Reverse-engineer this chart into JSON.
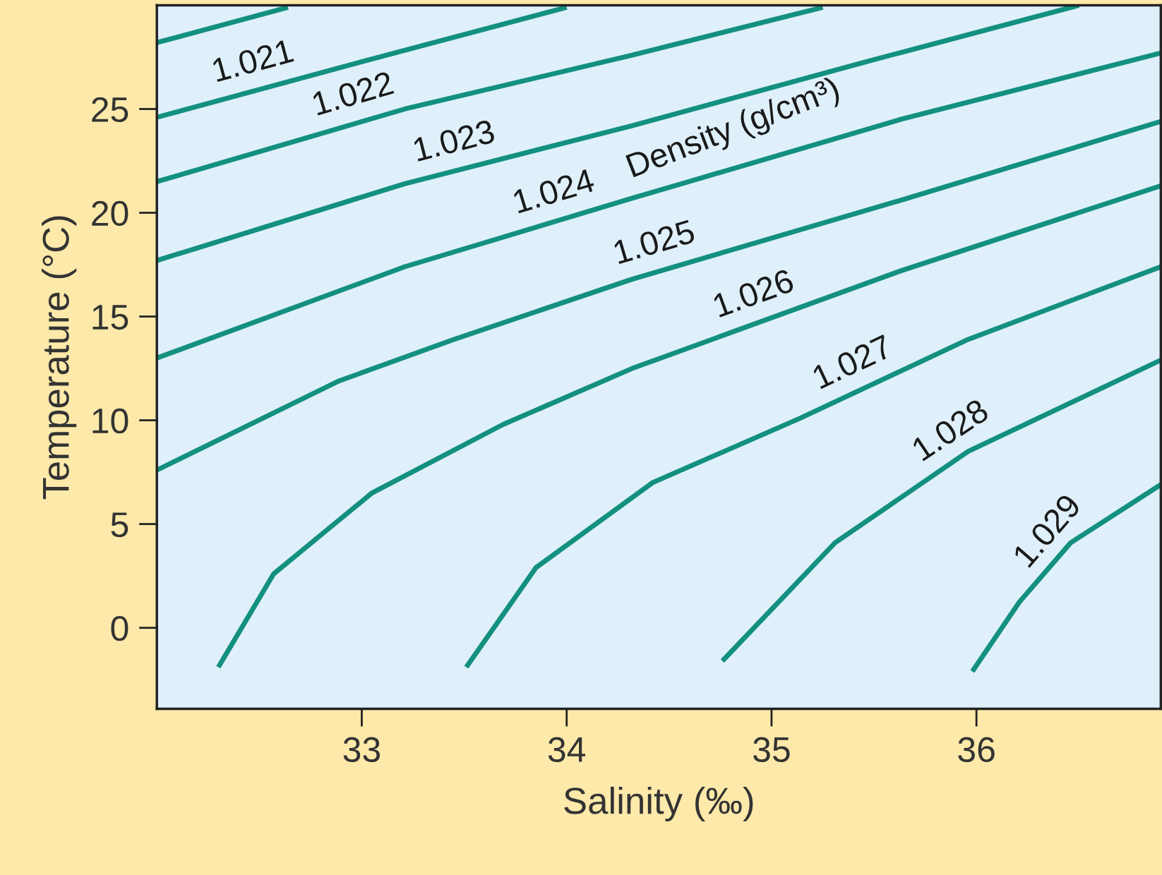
{
  "chart_data": {
    "type": "line",
    "xlabel": "Salinity (‰)",
    "ylabel": "Temperature (°C)",
    "annotations": [
      "Density (g/cm³)"
    ],
    "xlim": [
      32,
      36.9
    ],
    "ylim": [
      -3.9,
      30
    ],
    "xticks": [
      33,
      34,
      35,
      36
    ],
    "yticks": [
      0,
      5,
      10,
      15,
      20,
      25
    ],
    "grid": false,
    "legend": false,
    "marker": "none",
    "line_style": "solid",
    "series": [
      {
        "color": "#13907f",
        "x": [
          32,
          32.64
        ],
        "values": [
          28.2,
          29.9
        ]
      },
      {
        "name": "1.021",
        "color": "#13907f",
        "x": [
          32,
          32.97,
          34.0
        ],
        "values": [
          24.6,
          27.2,
          29.9
        ]
      },
      {
        "name": "1.022",
        "color": "#13907f",
        "x": [
          32,
          33.21,
          34.32,
          35.25
        ],
        "values": [
          21.5,
          25.0,
          27.6,
          29.9
        ]
      },
      {
        "name": "1.023",
        "color": "#13907f",
        "x": [
          32,
          33.21,
          34.32,
          35.47,
          36.5
        ],
        "values": [
          17.7,
          21.4,
          24.2,
          27.3,
          30.0
        ]
      },
      {
        "name": "1.024",
        "color": "#13907f",
        "x": [
          32,
          33.21,
          34.32,
          35.63,
          36.9
        ],
        "values": [
          13.0,
          17.4,
          20.7,
          24.5,
          27.7
        ]
      },
      {
        "name": "1.025",
        "color": "#13907f",
        "x": [
          32,
          32.89,
          33.45,
          34.32,
          35.63,
          36.9
        ],
        "values": [
          7.6,
          11.9,
          13.9,
          16.8,
          20.6,
          24.4
        ]
      },
      {
        "name": "1.026",
        "color": "#13907f",
        "x": [
          32.3,
          32.57,
          33.05,
          33.69,
          34.32,
          35.63,
          36.9
        ],
        "values": [
          -1.9,
          2.6,
          6.5,
          9.8,
          12.5,
          17.2,
          21.3
        ]
      },
      {
        "name": "1.027",
        "color": "#13907f",
        "x": [
          33.51,
          33.85,
          34.42,
          35.14,
          35.96,
          36.9
        ],
        "values": [
          -1.9,
          2.9,
          7.0,
          10.1,
          13.9,
          17.4
        ]
      },
      {
        "name": "1.028",
        "color": "#13907f",
        "x": [
          34.76,
          35.31,
          35.96,
          36.9
        ],
        "values": [
          -1.6,
          4.1,
          8.5,
          12.9
        ]
      },
      {
        "name": "1.029",
        "color": "#13907f",
        "x": [
          35.98,
          36.21,
          36.46,
          36.9
        ],
        "values": [
          -2.1,
          1.25,
          4.1,
          6.9
        ]
      }
    ]
  }
}
